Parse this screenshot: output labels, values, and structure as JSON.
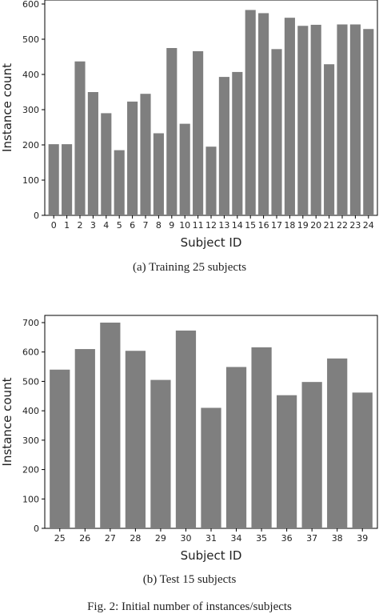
{
  "chart_data": [
    {
      "type": "bar",
      "caption": "(a) Training 25 subjects",
      "xlabel": "Subject ID",
      "ylabel": "Instance count",
      "ylim": [
        0,
        600
      ],
      "yticks": [
        0,
        100,
        200,
        300,
        400,
        500,
        600
      ],
      "bar_color": "#7f7f7f",
      "grid": false,
      "categories": [
        "0",
        "1",
        "2",
        "3",
        "4",
        "5",
        "6",
        "7",
        "8",
        "9",
        "10",
        "11",
        "12",
        "13",
        "14",
        "15",
        "16",
        "17",
        "18",
        "19",
        "20",
        "21",
        "22",
        "23",
        "24"
      ],
      "values": [
        202,
        202,
        437,
        350,
        290,
        185,
        323,
        345,
        233,
        475,
        260,
        466,
        195,
        393,
        407,
        583,
        574,
        472,
        561,
        538,
        541,
        429,
        542,
        542,
        529
      ]
    },
    {
      "type": "bar",
      "caption": "(b) Test 15 subjects",
      "xlabel": "Subject ID",
      "ylabel": "Instance count",
      "ylim": [
        0,
        740
      ],
      "yticks": [
        0,
        100,
        200,
        300,
        400,
        500,
        600,
        700
      ],
      "bar_color": "#7f7f7f",
      "grid": false,
      "categories": [
        "25",
        "26",
        "27",
        "28",
        "29",
        "30",
        "31",
        "34",
        "35",
        "36",
        "37",
        "38",
        "39"
      ],
      "values": [
        540,
        610,
        700,
        604,
        505,
        673,
        410,
        549,
        616,
        453,
        498,
        578,
        462
      ]
    }
  ],
  "figure_caption": "Fig. 2: Initial number of instances/subjects"
}
